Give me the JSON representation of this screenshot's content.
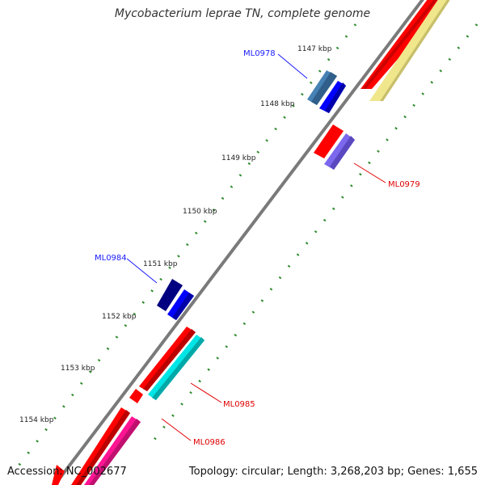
{
  "title": "Mycobacterium leprae TN, complete genome",
  "footer": {
    "accession": "Accession: NC_002677",
    "summary": "Topology: circular; Length: 3,268,203 bp; Genes: 1,655"
  },
  "ticks": [
    "1147 kbp",
    "1148 kbp",
    "1149 kbp",
    "1150 kbp",
    "1151 kbp",
    "1152 kbp",
    "1153 kbp",
    "1154 kbp"
  ],
  "gene_labels": [
    {
      "id": "ML0978",
      "color": "#1a1aff"
    },
    {
      "id": "ML0979",
      "color": "#e00000"
    },
    {
      "id": "ML0984",
      "color": "#1a1aff"
    },
    {
      "id": "ML0985",
      "color": "#e00000"
    },
    {
      "id": "ML0986",
      "color": "#e00000"
    }
  ],
  "colors": {
    "backbone": "#8c8c8c",
    "tick_marks": "#2e8b2e",
    "cds_red": "#ff0000",
    "cds_blue": "#0000ff",
    "cds_steelblue": "#4682b4",
    "cds_navy": "#000080",
    "cds_purple": "#7b68ee",
    "cds_cyan": "#00e5e5",
    "cds_magenta": "#ff1493",
    "cds_khaki": "#f0e68c"
  }
}
